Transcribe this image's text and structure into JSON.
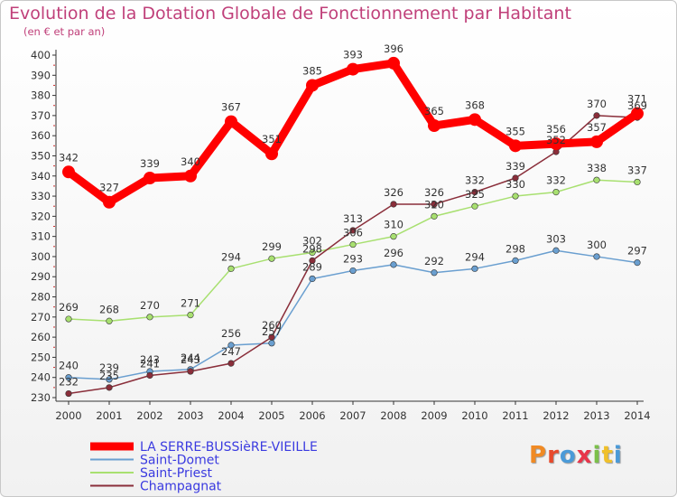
{
  "header": {
    "title": "Evolution de la Dotation Globale de Fonctionnement par Habitant",
    "subtitle": "(en € et par an)"
  },
  "logo": {
    "text": "Proxiti",
    "letter_colors": [
      "#f08a24",
      "#e84a2c",
      "#4a9ad8",
      "#e8354a",
      "#7cc04a",
      "#f0c02a",
      "#4a9ad8"
    ]
  },
  "chart_data": {
    "type": "line",
    "title": "Evolution de la Dotation Globale de Fonctionnement par Habitant",
    "subtitle": "(en € et par an)",
    "xlabel": "",
    "ylabel": "",
    "x": [
      "2000",
      "2001",
      "2002",
      "2003",
      "2004",
      "2005",
      "2006",
      "2007",
      "2008",
      "2009",
      "2010",
      "2011",
      "2012",
      "2013",
      "2014"
    ],
    "ylim": [
      230,
      400
    ],
    "yticks": [
      230,
      240,
      250,
      260,
      270,
      280,
      290,
      300,
      310,
      320,
      330,
      340,
      350,
      360,
      370,
      380,
      390,
      400
    ],
    "grid": false,
    "legend_position": "bottom-left",
    "series": [
      {
        "name": "LA SERRE-BUSSièRE-VIEILLE",
        "color": "#ff0000",
        "thick": true,
        "values": [
          342,
          327,
          339,
          340,
          367,
          351,
          385,
          393,
          396,
          365,
          368,
          355,
          356,
          357,
          371
        ],
        "labels": [
          "342",
          "327",
          "339",
          "340",
          "367",
          "351",
          "385",
          "393",
          "396",
          "365",
          "368",
          "355",
          "356",
          "357",
          "371"
        ]
      },
      {
        "name": "Saint-Domet",
        "color": "#6a9fd0",
        "thick": false,
        "values": [
          240,
          239,
          243,
          244,
          256,
          257,
          289,
          293,
          296,
          292,
          294,
          298,
          303,
          300,
          297
        ],
        "labels": [
          "240",
          "239",
          "243",
          "244",
          "256",
          "257",
          "289",
          "293",
          "296",
          "292",
          "294",
          "298",
          "303",
          "300",
          "297"
        ]
      },
      {
        "name": "Saint-Priest",
        "color": "#a8e070",
        "thick": false,
        "values": [
          269,
          268,
          270,
          271,
          294,
          299,
          302,
          306,
          310,
          320,
          325,
          330,
          332,
          338,
          337
        ],
        "labels": [
          "269",
          "268",
          "270",
          "271",
          "294",
          "299",
          "302",
          "306",
          "310",
          "320",
          "325",
          "330",
          "332",
          "338",
          "337"
        ]
      },
      {
        "name": "Champagnat",
        "color": "#8a2e3a",
        "thick": false,
        "values": [
          232,
          235,
          241,
          243,
          247,
          260,
          298,
          313,
          326,
          326,
          332,
          339,
          352,
          370,
          369
        ],
        "labels": [
          "232",
          "235",
          "241",
          "243",
          "247",
          "260",
          "298",
          "313",
          "326",
          "326",
          "332",
          "339",
          "352",
          "370",
          "369"
        ]
      }
    ]
  }
}
